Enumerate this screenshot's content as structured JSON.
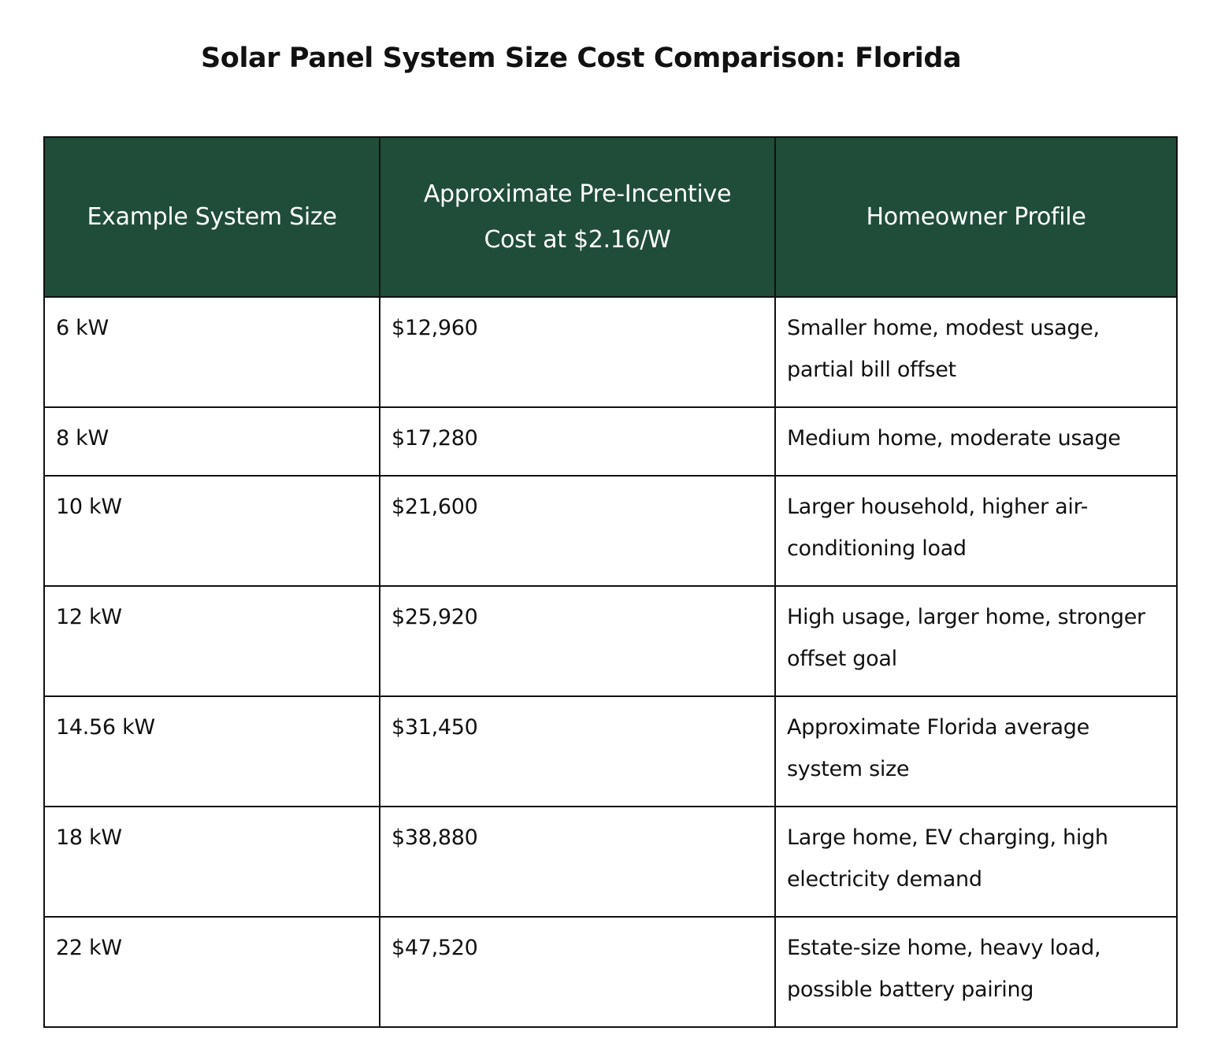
{
  "title": "Solar Panel System Size Cost Comparison: Florida",
  "header_bg_color": "#1f4d3a",
  "table": {
    "headers": [
      "Example System Size",
      "Approximate Pre-Incentive Cost at $2.16/W",
      "Homeowner Profile"
    ],
    "rows": [
      {
        "size": "6 kW",
        "cost": "$12,960",
        "profile": "Smaller home, modest usage, partial bill offset"
      },
      {
        "size": "8 kW",
        "cost": "$17,280",
        "profile": "Medium home, moderate usage"
      },
      {
        "size": "10 kW",
        "cost": "$21,600",
        "profile": "Larger household, higher air-conditioning load"
      },
      {
        "size": "12 kW",
        "cost": "$25,920",
        "profile": "High usage, larger home, stronger offset goal"
      },
      {
        "size": "14.56 kW",
        "cost": "$31,450",
        "profile": "Approximate Florida average system size"
      },
      {
        "size": "18 kW",
        "cost": "$38,880",
        "profile": "Large home, EV charging, high electricity demand"
      },
      {
        "size": "22 kW",
        "cost": "$47,520",
        "profile": "Estate-size home, heavy load, possible battery pairing"
      }
    ]
  }
}
